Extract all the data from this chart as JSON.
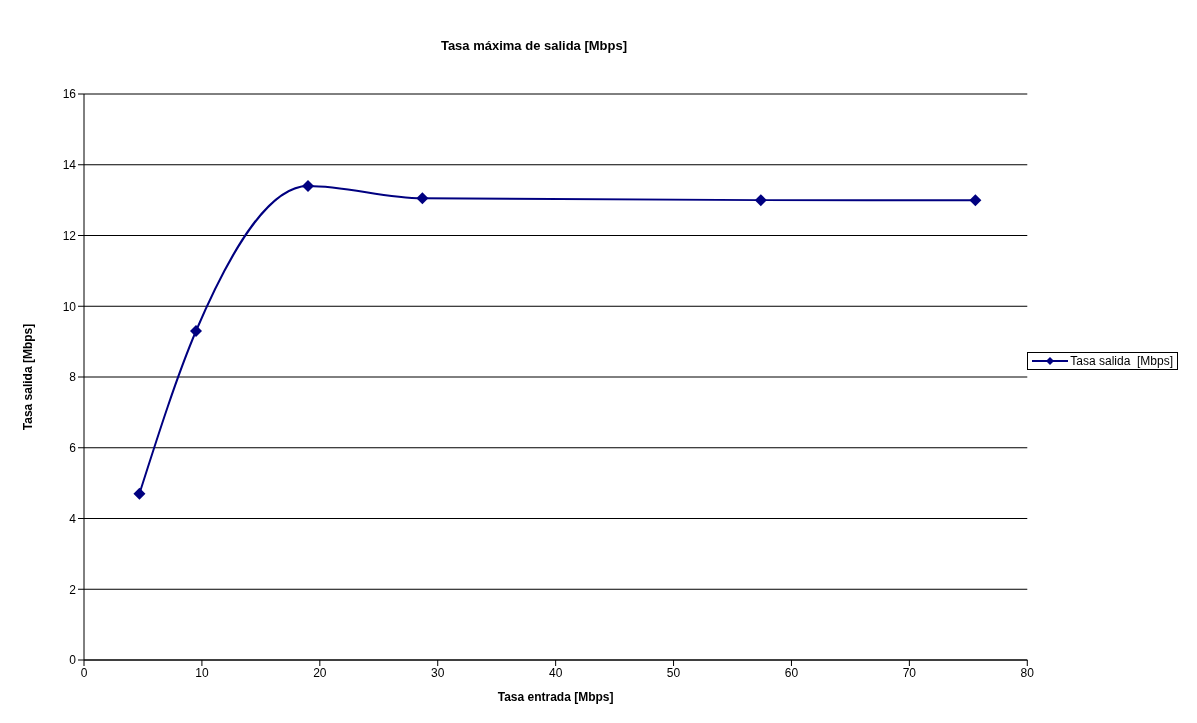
{
  "chart_data": {
    "type": "line",
    "title": "Tasa máxima de salida  [Mbps]",
    "xlabel": "Tasa entrada [Mbps]",
    "ylabel": "Tasa salida  [Mbps]",
    "x": [
      4.7,
      9.5,
      19,
      28.7,
      57.4,
      75.6
    ],
    "series": [
      {
        "name": "Tasa salida  [Mbps]",
        "color": "#000080",
        "values": [
          4.7,
          9.3,
          13.4,
          13.05,
          13,
          13
        ]
      }
    ],
    "xlim": [
      0,
      80
    ],
    "xticks": [
      0,
      10,
      20,
      30,
      40,
      50,
      60,
      70,
      80
    ],
    "ylim": [
      0,
      16
    ],
    "yticks": [
      0,
      2,
      4,
      6,
      8,
      10,
      12,
      14,
      16
    ],
    "grid": "y",
    "legend": "right",
    "marker": "diamond",
    "line_style": "solid"
  }
}
